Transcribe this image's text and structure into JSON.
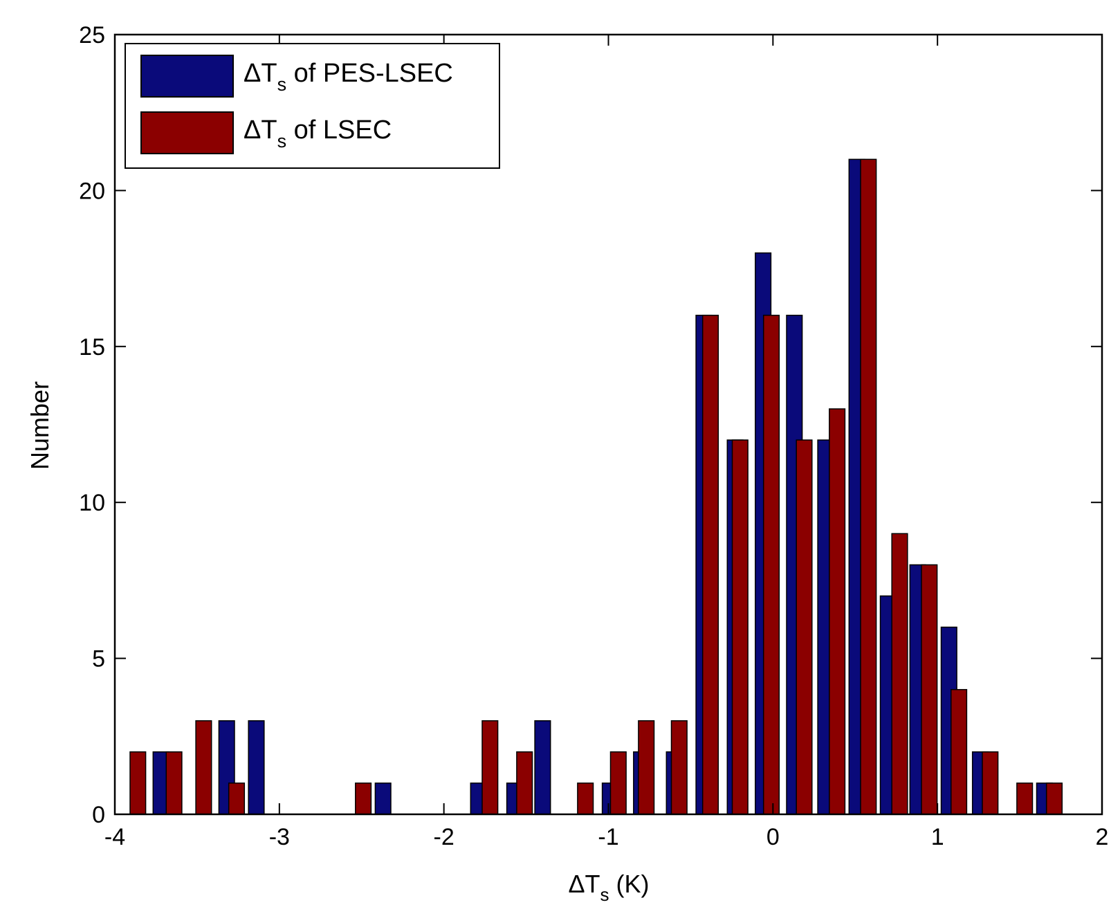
{
  "chart_data": {
    "type": "bar",
    "xlabel": {
      "prefix": "ΔT",
      "subscript": "s",
      "suffix": " (K)"
    },
    "ylabel": "Number",
    "xlim": [
      -4,
      2
    ],
    "ylim": [
      0,
      25
    ],
    "xticks": [
      -4,
      -3,
      -2,
      -1,
      0,
      1,
      2
    ],
    "xtick_labels": [
      "-4",
      "-3",
      "-2",
      "-1",
      "0",
      "1",
      "2"
    ],
    "yticks": [
      0,
      5,
      10,
      15,
      20,
      25
    ],
    "ytick_labels": [
      "0",
      "5",
      "10",
      "15",
      "20",
      "25"
    ],
    "grid": false,
    "legend_position": "top-left",
    "bin_width": 0.19,
    "series": [
      {
        "name": "ΔTs of PES-LSEC",
        "label_prefix": "ΔT",
        "label_subscript": "s",
        "label_suffix": " of PES-LSEC",
        "color": "#0a0a7a",
        "x": [
          -3.72,
          -3.32,
          -3.14,
          -2.37,
          -1.79,
          -1.57,
          -1.4,
          -0.99,
          -0.8,
          -0.6,
          -0.42,
          -0.23,
          -0.06,
          0.13,
          0.32,
          0.51,
          0.7,
          0.88,
          1.07,
          1.26,
          1.65
        ],
        "values": [
          2,
          3,
          3,
          1,
          1,
          1,
          3,
          1,
          2,
          2,
          16,
          12,
          18,
          16,
          12,
          21,
          7,
          8,
          6,
          2,
          1
        ]
      },
      {
        "name": "ΔTs of LSEC",
        "label_prefix": "ΔT",
        "label_subscript": "s",
        "label_suffix": " of LSEC",
        "color": "#8b0000",
        "x": [
          -3.86,
          -3.64,
          -3.46,
          -3.26,
          -2.49,
          -1.72,
          -1.51,
          -1.14,
          -0.94,
          -0.77,
          -0.57,
          -0.38,
          -0.2,
          -0.01,
          0.19,
          0.39,
          0.58,
          0.77,
          0.95,
          1.13,
          1.32,
          1.53,
          1.71
        ],
        "values": [
          2,
          2,
          3,
          1,
          1,
          3,
          2,
          1,
          2,
          3,
          3,
          16,
          12,
          16,
          12,
          13,
          21,
          9,
          8,
          4,
          2,
          1,
          1
        ]
      }
    ]
  }
}
